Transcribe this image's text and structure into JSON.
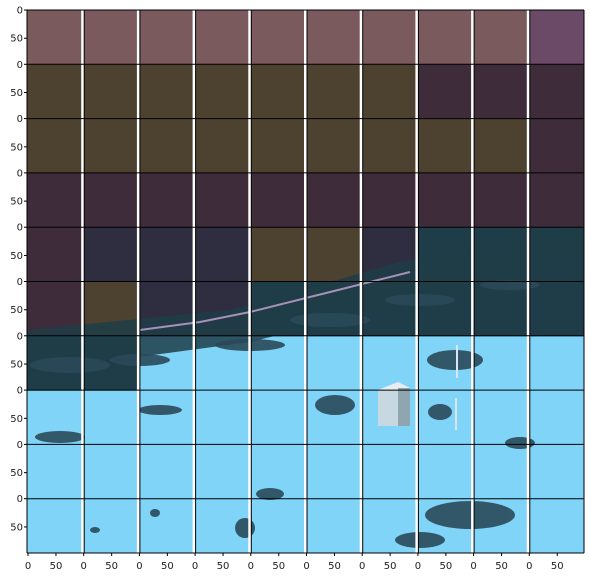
{
  "figure": {
    "grid": {
      "rows": 10,
      "cols": 10
    },
    "tile_axis": {
      "y_tick_labels": [
        "0",
        "50"
      ],
      "x_tick_labels": [
        "0",
        "50"
      ]
    },
    "tile_tint": {
      "comment_free": true,
      "rows": [
        [
          "sky",
          "sky",
          "sky",
          "sky",
          "sky",
          "sky",
          "sky",
          "sky",
          "sky",
          "sky-violet"
        ],
        [
          "sand",
          "sand",
          "sand",
          "sand",
          "sand",
          "sand",
          "sand",
          "dark",
          "dark",
          "dark"
        ],
        [
          "sand",
          "sand",
          "sand",
          "sand",
          "sand",
          "sand",
          "sand",
          "sand",
          "sand",
          "dark"
        ],
        [
          "dark",
          "dark",
          "dark",
          "dark",
          "dark",
          "dark",
          "dark",
          "dark",
          "dark",
          "dark"
        ],
        [
          "dark",
          "navy",
          "navy",
          "navy",
          "sand",
          "sand",
          "navy",
          "teal",
          "teal",
          "teal"
        ],
        [
          "dark",
          "sand",
          "navy",
          "navy",
          "teal",
          "teal",
          "teal",
          "teal",
          "teal",
          "teal"
        ],
        [
          "teal",
          "teal",
          "cyan",
          "cyan",
          "cyan",
          "cyan",
          "cyan",
          "cyan",
          "cyan",
          "cyan"
        ],
        [
          "cyan",
          "cyan",
          "cyan",
          "cyan",
          "cyan",
          "cyan",
          "cyan",
          "cyan",
          "cyan",
          "cyan"
        ],
        [
          "cyan",
          "cyan",
          "cyan",
          "cyan",
          "cyan",
          "cyan",
          "cyan",
          "cyan",
          "cyan",
          "cyan"
        ],
        [
          "cyan",
          "cyan",
          "cyan",
          "cyan",
          "cyan",
          "cyan",
          "cyan",
          "cyan",
          "cyan",
          "cyan"
        ]
      ]
    },
    "colors": {
      "sky": "#7a5a5c",
      "sky-violet": "#6a4a66",
      "sand": "#4d4230",
      "dark": "#3e2c3a",
      "navy": "#2f2e40",
      "teal": "#1f3d48",
      "cyan": "#80d4f8",
      "vegetation": "#2a4a5a",
      "structure": "#c8d8e0"
    }
  }
}
